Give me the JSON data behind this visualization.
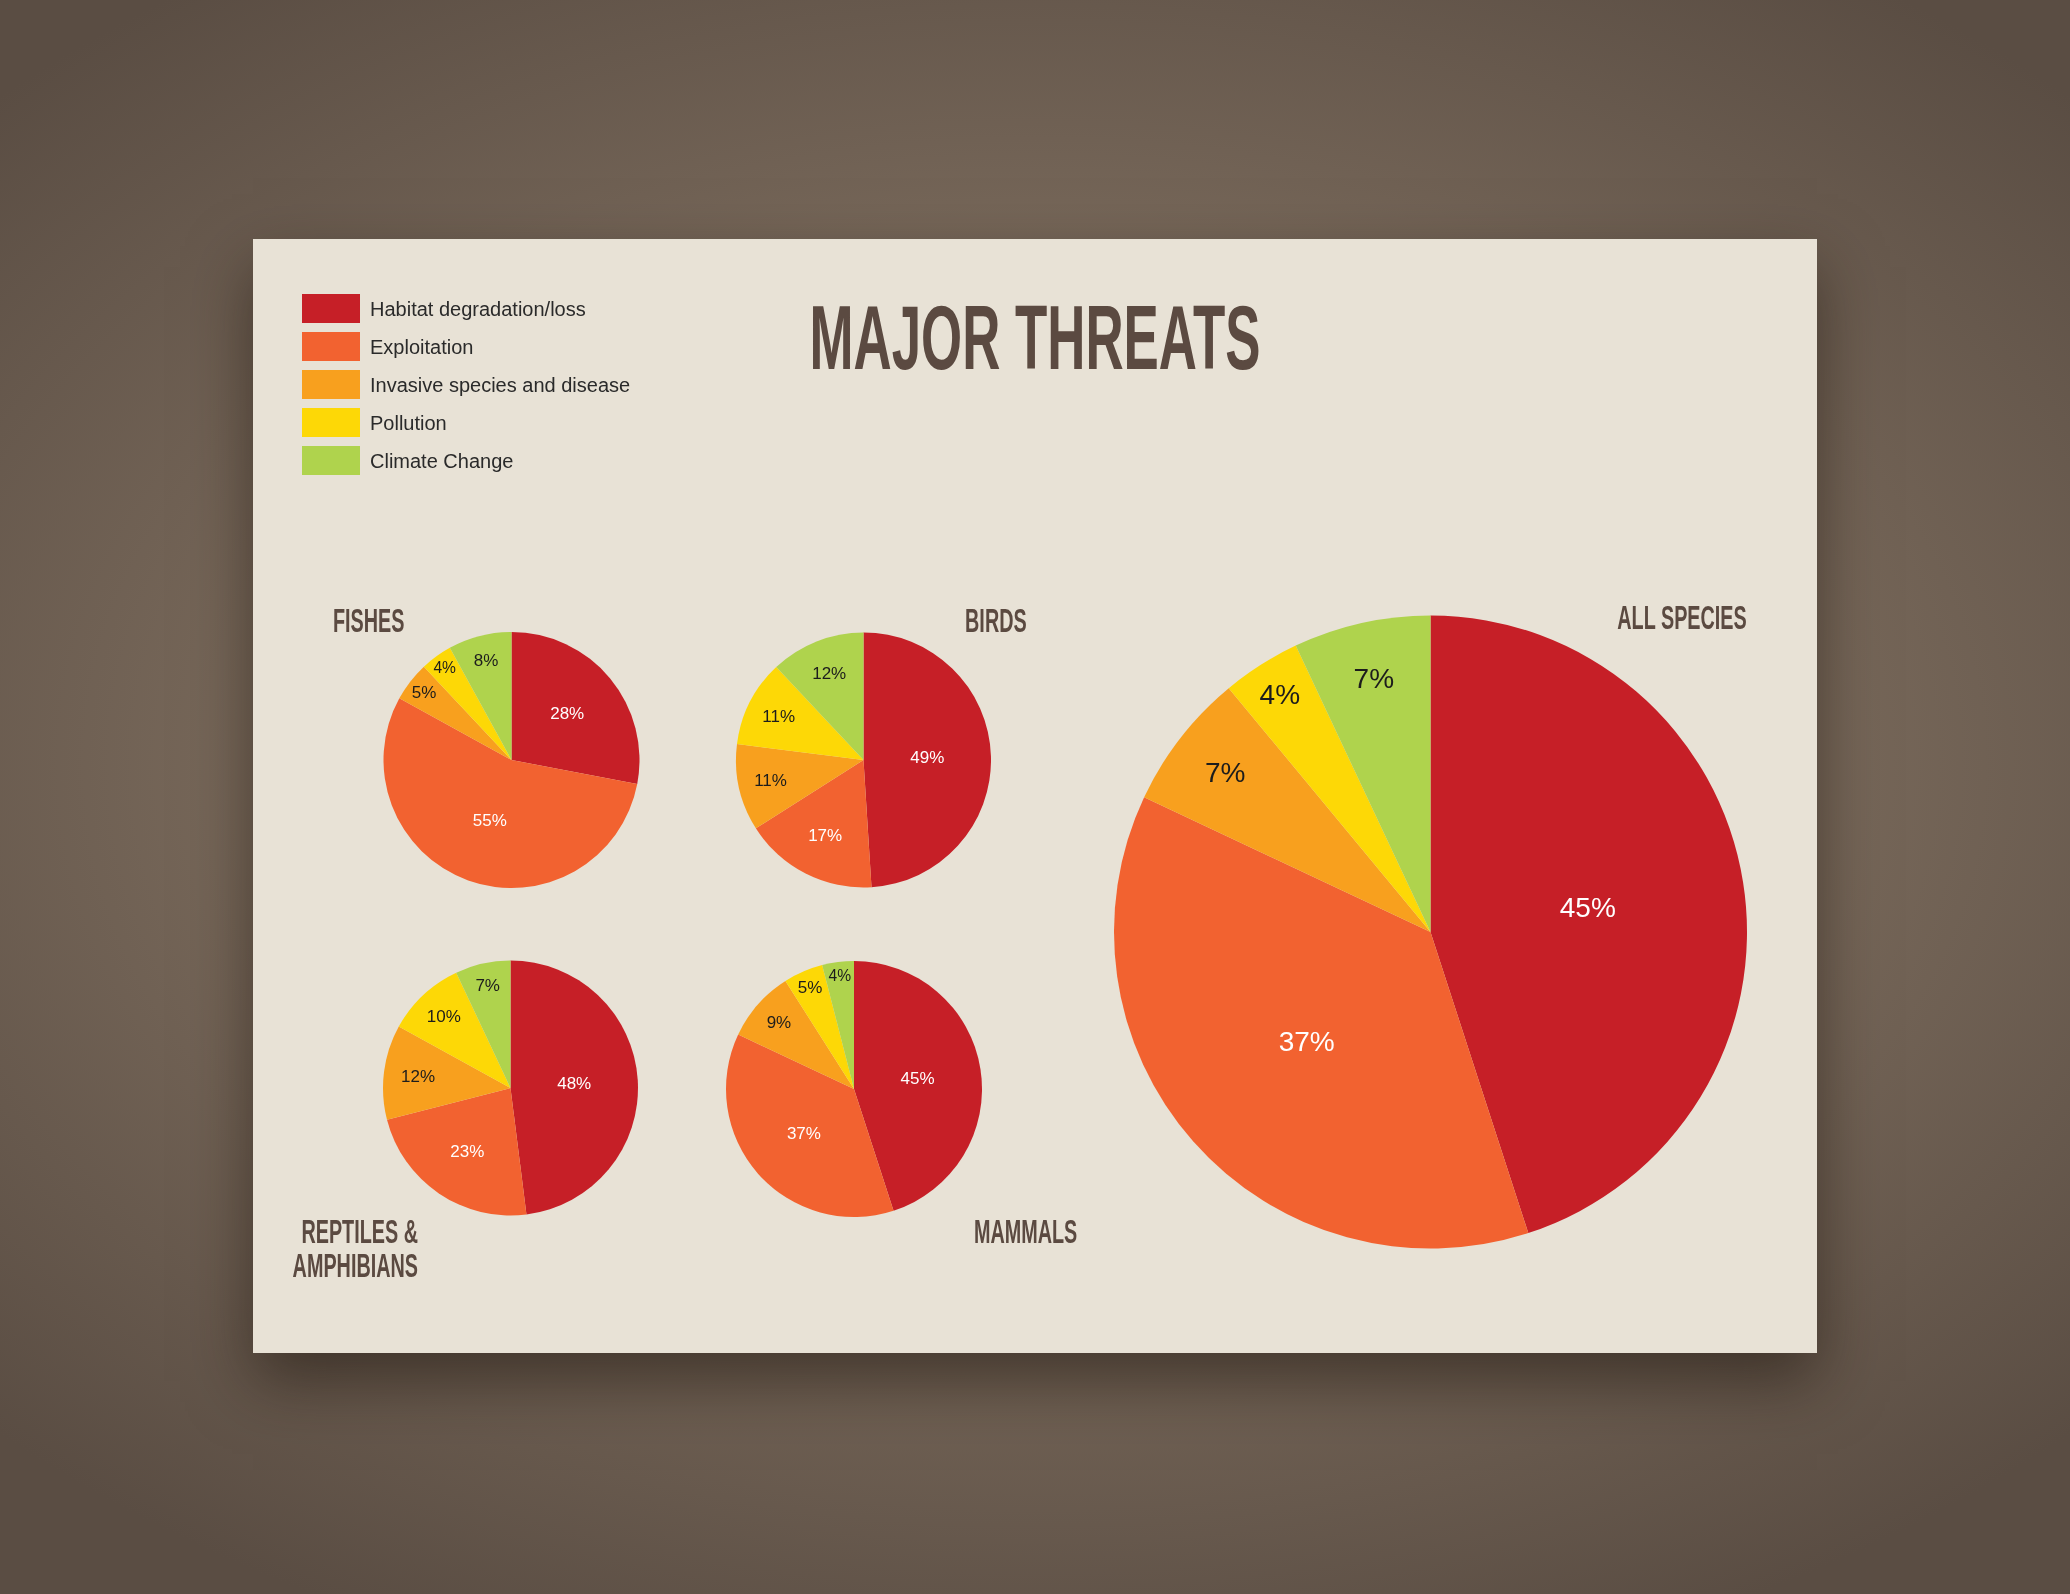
{
  "chart_data": [
    {
      "type": "other",
      "title": "MAJOR THREATS"
    },
    {
      "type": "pie",
      "title": "FISHES",
      "categories": [
        "Habitat degradation/loss",
        "Exploitation",
        "Invasive species and disease",
        "Pollution",
        "Climate Change"
      ],
      "values": [
        28,
        55,
        5,
        4,
        8
      ],
      "colors": [
        "#c61f27",
        "#f26230",
        "#f8a01e",
        "#fdd806",
        "#afd34d"
      ],
      "value_labels": [
        "28%",
        "55%",
        "5%",
        "4%",
        "8%"
      ],
      "legend": "top left"
    },
    {
      "type": "pie",
      "title": "BIRDS",
      "categories": [
        null,
        null,
        null,
        null,
        null
      ],
      "values": [
        49,
        17,
        11,
        11,
        12
      ],
      "colors": [
        "#c61f27",
        "#f26230",
        "#f8a01e",
        "#fdd806",
        "#afd34d"
      ],
      "value_labels": [
        "49%",
        "17%",
        "11%",
        "11%",
        "12%"
      ]
    },
    {
      "type": "pie",
      "title": "ALL SPECIES",
      "categories": [
        null,
        null,
        null,
        null,
        null
      ],
      "values": [
        45,
        37,
        7,
        4,
        7
      ],
      "colors": [
        "#c61f27",
        "#f26230",
        "#f8a01e",
        "#fdd806",
        "#afd34d"
      ],
      "value_labels": [
        "45%",
        "37%",
        "7%",
        "4%",
        "7%"
      ]
    },
    {
      "type": "pie",
      "title": "REPTILES & AMPHIBIANS",
      "categories": [
        null,
        null,
        null,
        null,
        null
      ],
      "values": [
        48,
        23,
        12,
        10,
        7
      ],
      "colors": [
        "#c61f27",
        "#f26230",
        "#f8a01e",
        "#fdd806",
        "#afd34d"
      ],
      "value_labels": [
        "48%",
        "23%",
        "12%",
        "10%",
        "7%"
      ]
    },
    {
      "type": "pie",
      "title": "MAMMALS",
      "categories": [
        null,
        null,
        null,
        null,
        null
      ],
      "values": [
        45,
        37,
        9,
        5,
        4
      ],
      "colors": [
        "#c61f27",
        "#f26230",
        "#f8a01e",
        "#fdd806",
        "#afd34d"
      ],
      "value_labels": [
        "45%",
        "37%",
        "9%",
        "5%",
        "4%"
      ]
    }
  ]
}
